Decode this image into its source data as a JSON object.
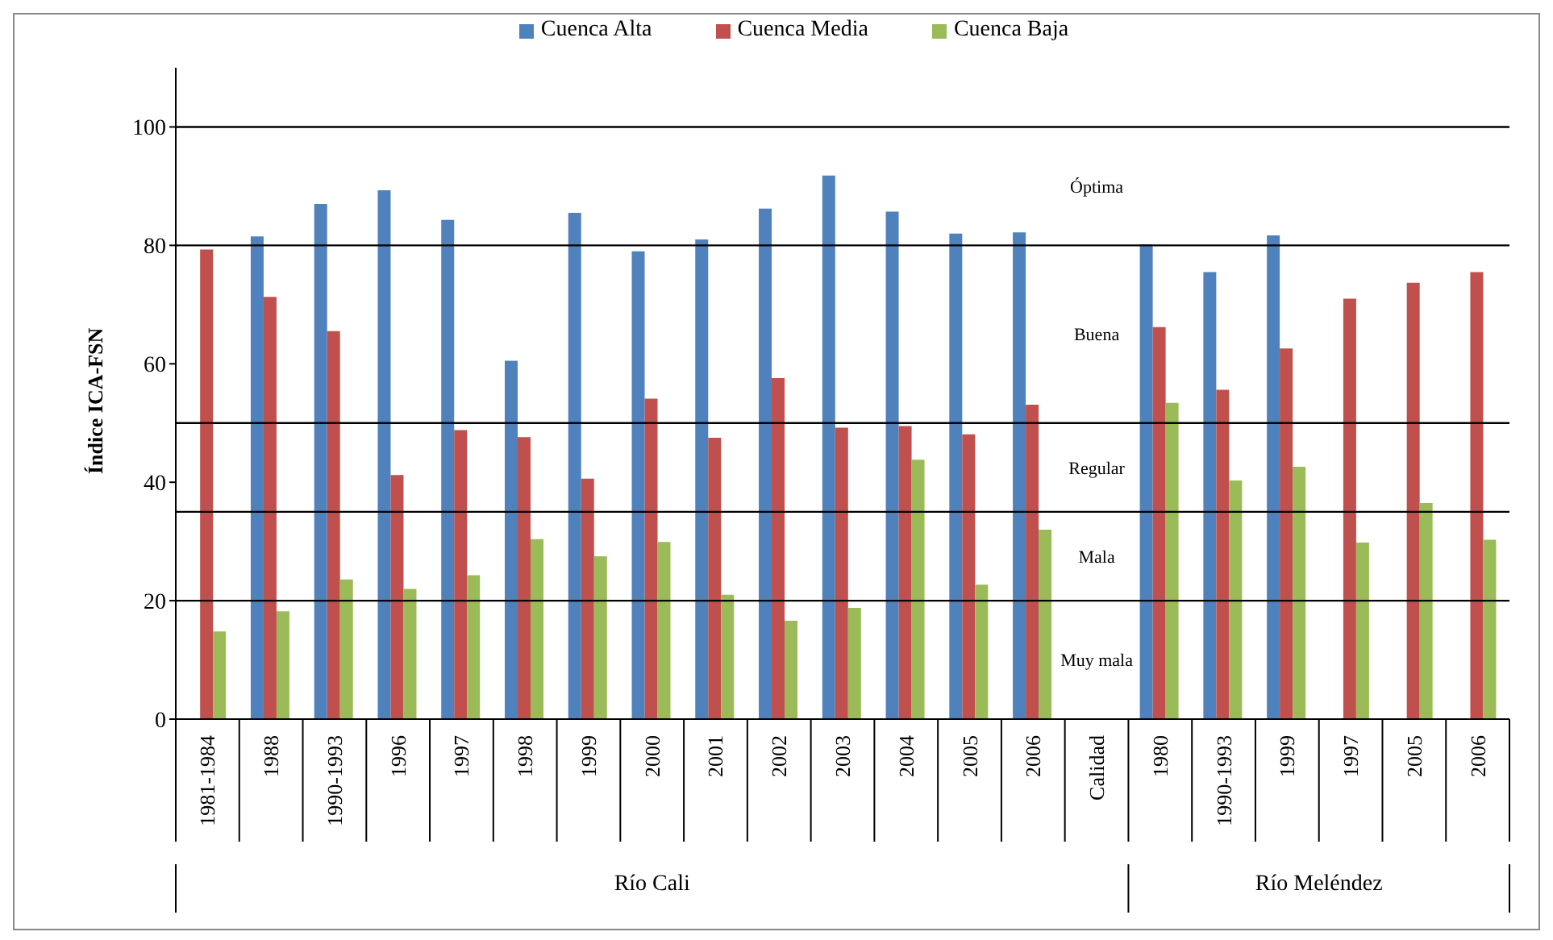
{
  "chart_data": {
    "type": "bar",
    "ylabel": "Índice ICA-FSN",
    "categories": [
      "1981-1984",
      "1988",
      "1990-1993",
      "1996",
      "1997",
      "1998",
      "1999",
      "2000",
      "2001",
      "2002",
      "2003",
      "2004",
      "2005",
      "2006",
      "Calidad",
      "1980",
      "1990-1993",
      "1999",
      "1997",
      "2005",
      "2006"
    ],
    "series": [
      {
        "name": "Cuenca Alta",
        "color": "#4f81bd",
        "values": [
          null,
          81.5,
          87,
          89.3,
          84.3,
          60.5,
          85.5,
          79,
          81,
          86.2,
          91.8,
          85.7,
          82,
          82.2,
          null,
          80.2,
          75.5,
          81.7,
          null,
          null,
          null
        ]
      },
      {
        "name": "Cuenca Media",
        "color": "#c0504d",
        "values": [
          79.3,
          71.3,
          65.5,
          41.2,
          48.8,
          47.6,
          40.6,
          54.1,
          47.5,
          57.6,
          49.2,
          49.5,
          48.1,
          53.1,
          null,
          66.2,
          55.6,
          62.6,
          71,
          73.7,
          75.5
        ]
      },
      {
        "name": "Cuenca Baja",
        "color": "#9bbb59",
        "values": [
          14.8,
          18.2,
          23.6,
          22,
          24.3,
          30.4,
          27.5,
          29.9,
          21,
          16.6,
          18.8,
          43.8,
          22.7,
          32,
          null,
          53.4,
          40.3,
          42.6,
          29.8,
          36.5,
          30.3
        ]
      }
    ],
    "ylim": [
      0,
      110
    ],
    "yticks": [
      0,
      20,
      40,
      60,
      80,
      100
    ],
    "grid": false,
    "legend": "top",
    "ref_lines": [
      {
        "axis": "y",
        "value": 100,
        "color": "#000000"
      },
      {
        "axis": "y",
        "value": 80,
        "color": "#000000"
      },
      {
        "axis": "y",
        "value": 50,
        "color": "#000000"
      },
      {
        "axis": "y",
        "value": 35,
        "color": "#000000"
      },
      {
        "axis": "y",
        "value": 20,
        "color": "#000000"
      }
    ],
    "annotations": [
      "Óptima",
      "Buena",
      "Regular",
      "Mala",
      "Muy mala",
      "Río Cali",
      "Río Meléndez"
    ]
  }
}
